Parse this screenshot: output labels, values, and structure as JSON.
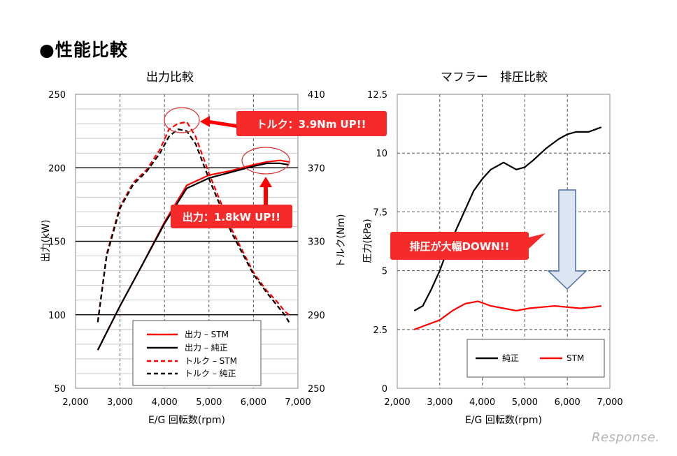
{
  "page": {
    "title": "●性能比較",
    "watermark": "Response."
  },
  "colors": {
    "stm": "#ff0000",
    "stock": "#000000",
    "callout_fill": "#f52a2a",
    "arrow_fill": "#dce5f2",
    "arrow_stroke": "#4a6fa5"
  },
  "chart_data": [
    {
      "type": "line",
      "title": "出力比較",
      "xlabel": "E/G 回転数(rpm)",
      "ylabel": "出力(kW)",
      "y2label": "トルク(Nm)",
      "xlim": [
        2000,
        7000
      ],
      "ylim": [
        50,
        250
      ],
      "y2lim": [
        250,
        410
      ],
      "x_ticks": [
        "2,000",
        "3,000",
        "4,000",
        "5,000",
        "6,000",
        "7,000"
      ],
      "y_ticks": [
        "50",
        "100",
        "150",
        "200",
        "250"
      ],
      "y2_ticks": [
        "250",
        "290",
        "330",
        "370",
        "410"
      ],
      "grid": true,
      "legend_position": "bottom-center",
      "legend": [
        "出力 – STM",
        "出力 – 純正",
        "トルク – STM",
        "トルク – 純正"
      ],
      "annotations": [
        "トルク：3.9Nm UP!!",
        "出力：1.8kW UP!!"
      ],
      "series": [
        {
          "name": "出力 – STM",
          "axis": "left",
          "style": "solid",
          "color": "#ff0000",
          "x": [
            2500,
            3000,
            3500,
            4000,
            4500,
            5000,
            5500,
            6000,
            6300,
            6600,
            6800
          ],
          "y": [
            76,
            106,
            134,
            163,
            188,
            195,
            198,
            202,
            204,
            205,
            204
          ]
        },
        {
          "name": "出力 – 純正",
          "axis": "left",
          "style": "solid",
          "color": "#000000",
          "x": [
            2500,
            3000,
            3500,
            4000,
            4500,
            5000,
            5500,
            6000,
            6300,
            6600,
            6800
          ],
          "y": [
            76,
            106,
            134,
            162,
            186,
            193,
            197,
            201,
            203,
            203,
            202
          ]
        },
        {
          "name": "トルク – STM",
          "axis": "right",
          "style": "dashed",
          "color": "#ff0000",
          "x": [
            2500,
            2700,
            3000,
            3300,
            3600,
            3900,
            4100,
            4300,
            4500,
            4700,
            5000,
            5500,
            6000,
            6300,
            6500,
            6700,
            6800
          ],
          "y": [
            286,
            323,
            349,
            362,
            369,
            380,
            391,
            394,
            395,
            387,
            367,
            337,
            313,
            303,
            298,
            292,
            290
          ]
        },
        {
          "name": "トルク – 純正",
          "axis": "right",
          "style": "dashed",
          "color": "#000000",
          "x": [
            2500,
            2700,
            3000,
            3300,
            3600,
            3900,
            4100,
            4300,
            4500,
            4700,
            5000,
            5500,
            6000,
            6300,
            6500,
            6700,
            6800
          ],
          "y": [
            286,
            322,
            348,
            361,
            368,
            378,
            387,
            391,
            390,
            383,
            364,
            335,
            312,
            302,
            296,
            290,
            286
          ]
        }
      ]
    },
    {
      "type": "line",
      "title": "マフラー　排圧比較",
      "xlabel": "E/G 回転数(rpm)",
      "ylabel": "圧力(kPa)",
      "xlim": [
        2000,
        7000
      ],
      "ylim": [
        0,
        12.5
      ],
      "x_ticks": [
        "2,000",
        "3,000",
        "4,000",
        "5,000",
        "6,000",
        "7,000"
      ],
      "y_ticks": [
        "0",
        "2.5",
        "5",
        "7.5",
        "10",
        "12.5"
      ],
      "grid": true,
      "legend_position": "bottom",
      "legend": [
        "純正",
        "STM"
      ],
      "annotations": [
        "排圧が大幅DOWN!!"
      ],
      "series": [
        {
          "name": "純正",
          "color": "#000000",
          "x": [
            2400,
            2600,
            2800,
            3000,
            3200,
            3500,
            3800,
            4000,
            4200,
            4500,
            4800,
            5000,
            5200,
            5500,
            5800,
            6000,
            6200,
            6500,
            6800
          ],
          "y": [
            3.3,
            3.5,
            4.2,
            5.0,
            6.0,
            7.2,
            8.4,
            8.9,
            9.3,
            9.6,
            9.3,
            9.4,
            9.7,
            10.2,
            10.6,
            10.8,
            10.9,
            10.9,
            11.1
          ]
        },
        {
          "name": "STM",
          "color": "#ff0000",
          "x": [
            2400,
            2700,
            3000,
            3300,
            3600,
            3900,
            4200,
            4500,
            4800,
            5100,
            5400,
            5700,
            6000,
            6300,
            6600,
            6800
          ],
          "y": [
            2.5,
            2.7,
            2.9,
            3.3,
            3.6,
            3.7,
            3.5,
            3.4,
            3.3,
            3.4,
            3.45,
            3.5,
            3.45,
            3.4,
            3.45,
            3.5
          ]
        }
      ]
    }
  ]
}
